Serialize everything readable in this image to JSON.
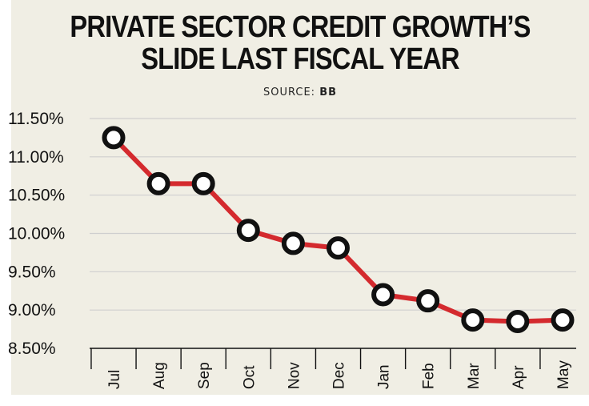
{
  "header": {
    "title_line1": "PRIVATE SECTOR CREDIT GROWTH’S",
    "title_line2": "SLIDE LAST FISCAL YEAR",
    "source_label": "SOURCE:",
    "source_value": "BB"
  },
  "colors": {
    "line": "#d42a2e",
    "marker_fill": "#ffffff",
    "marker_stroke": "#111111",
    "background": "#f0eee4",
    "grid": "#cfcfcf"
  },
  "chart_data": {
    "type": "line",
    "categories": [
      "Jul",
      "Aug",
      "Sep",
      "Oct",
      "Nov",
      "Dec",
      "Jan",
      "Feb",
      "Mar",
      "Apr",
      "May"
    ],
    "series": [
      {
        "values": [
          11.25,
          10.65,
          10.65,
          10.04,
          9.87,
          9.81,
          9.2,
          9.12,
          8.87,
          8.85,
          8.87
        ]
      }
    ],
    "y_ticks": [
      "11.50%",
      "11.00%",
      "10.50%",
      "10.00%",
      "9.50%",
      "9.00%",
      "8.50%"
    ],
    "y_tick_values": [
      11.5,
      11.0,
      10.5,
      10.0,
      9.5,
      9.0,
      8.5
    ],
    "ylim": [
      8.5,
      11.5
    ],
    "grid": true,
    "title": "PRIVATE SECTOR CREDIT GROWTH’S SLIDE LAST FISCAL YEAR",
    "xlabel": "",
    "ylabel": ""
  }
}
